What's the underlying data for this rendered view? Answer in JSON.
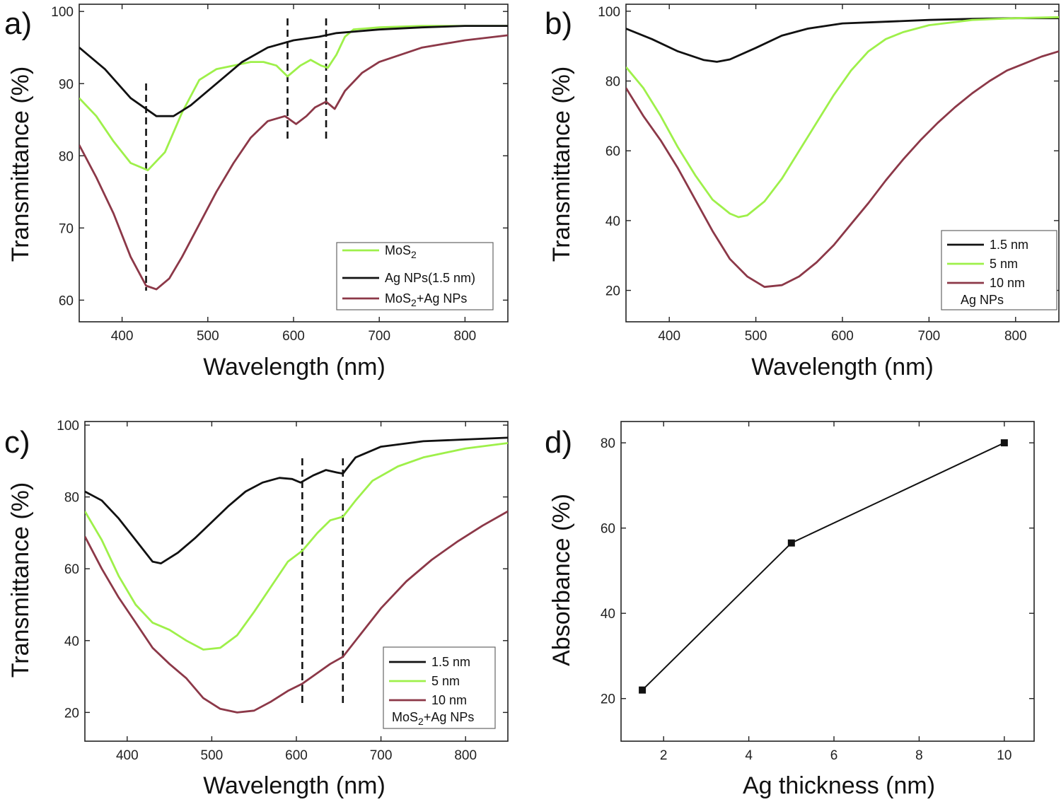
{
  "chart_data": [
    {
      "panel": "a)",
      "type": "line",
      "xlabel": "Wavelength (nm)",
      "ylabel": "Transmittance (%)",
      "xlim": [
        350,
        850
      ],
      "ylim": [
        57,
        101
      ],
      "xticks": [
        400,
        500,
        600,
        700,
        800
      ],
      "yticks": [
        60,
        70,
        80,
        90,
        100
      ],
      "legend_position": "bottom-right",
      "legend_note": "",
      "dashed_markers_x": [
        428,
        593,
        638
      ],
      "series": [
        {
          "name": "MoS2",
          "label_main": "MoS",
          "label_sub": "2",
          "label_tail": "",
          "color": "#9ef04a",
          "x": [
            350,
            370,
            390,
            410,
            430,
            450,
            470,
            490,
            510,
            530,
            550,
            565,
            580,
            593,
            608,
            620,
            632,
            640,
            650,
            660,
            670,
            700,
            750,
            800,
            850
          ],
          "y": [
            88,
            85.5,
            82,
            79,
            78,
            80.5,
            86,
            90.5,
            92,
            92.5,
            93,
            93,
            92.5,
            91,
            92.5,
            93.3,
            92.5,
            92.2,
            94,
            96.5,
            97.5,
            97.8,
            98,
            98,
            98
          ]
        },
        {
          "name": "Ag NPs(1.5 nm)",
          "label_main": "Ag NPs(1.5 nm)",
          "label_sub": "",
          "label_tail": "",
          "color": "#111111",
          "x": [
            350,
            380,
            410,
            440,
            460,
            480,
            510,
            540,
            570,
            600,
            630,
            650,
            700,
            750,
            800,
            850
          ],
          "y": [
            95,
            92,
            88,
            85.5,
            85.5,
            87,
            90,
            93,
            95,
            96,
            96.5,
            97,
            97.5,
            97.8,
            98,
            98
          ]
        },
        {
          "name": "MoS2+Ag NPs",
          "label_main": "MoS",
          "label_sub": "2",
          "label_tail": "+Ag NPs",
          "color": "#8c3848",
          "x": [
            350,
            370,
            390,
            410,
            428,
            440,
            455,
            470,
            490,
            510,
            530,
            550,
            570,
            590,
            603,
            615,
            625,
            638,
            648,
            660,
            680,
            700,
            750,
            800,
            850
          ],
          "y": [
            81.5,
            77,
            72,
            66,
            62,
            61.5,
            63,
            66,
            70.5,
            75,
            79,
            82.5,
            84.8,
            85.5,
            84.4,
            85.5,
            86.7,
            87.5,
            86.5,
            89,
            91.5,
            93,
            95,
            96,
            96.7
          ]
        }
      ]
    },
    {
      "panel": "b)",
      "type": "line",
      "xlabel": "Wavelength (nm)",
      "ylabel": "Transmittance (%)",
      "xlim": [
        350,
        850
      ],
      "ylim": [
        11,
        102
      ],
      "xticks": [
        400,
        500,
        600,
        700,
        800
      ],
      "yticks": [
        20,
        40,
        60,
        80,
        100
      ],
      "legend_position": "bottom-right",
      "legend_note": "Ag NPs",
      "dashed_markers_x": [],
      "series": [
        {
          "name": "1.5 nm",
          "label_main": "1.5 nm",
          "label_sub": "",
          "label_tail": "",
          "color": "#111111",
          "x": [
            350,
            380,
            410,
            440,
            455,
            470,
            500,
            530,
            560,
            600,
            650,
            700,
            750,
            800,
            850
          ],
          "y": [
            95,
            92,
            88.5,
            86,
            85.5,
            86.2,
            89.5,
            93,
            95,
            96.5,
            97,
            97.5,
            97.8,
            98,
            98
          ]
        },
        {
          "name": "5 nm",
          "label_main": "5 nm",
          "label_sub": "",
          "label_tail": "",
          "color": "#9ef04a",
          "x": [
            350,
            370,
            390,
            410,
            430,
            450,
            470,
            480,
            490,
            510,
            530,
            550,
            570,
            590,
            610,
            630,
            650,
            670,
            700,
            750,
            800,
            850
          ],
          "y": [
            84,
            78,
            70,
            61,
            53,
            46,
            42,
            41,
            41.5,
            45.5,
            52,
            60,
            68,
            76,
            83,
            88.5,
            92,
            94,
            96,
            97.5,
            98,
            98.3
          ]
        },
        {
          "name": "10 nm",
          "label_main": "10 nm",
          "label_sub": "",
          "label_tail": "",
          "color": "#8c3848",
          "x": [
            350,
            370,
            390,
            410,
            430,
            450,
            470,
            490,
            510,
            530,
            550,
            570,
            590,
            610,
            630,
            650,
            670,
            690,
            710,
            730,
            750,
            770,
            790,
            810,
            830,
            850
          ],
          "y": [
            78,
            70,
            63,
            55,
            46,
            37,
            29,
            24,
            21,
            21.5,
            24,
            28,
            33,
            39,
            45,
            51.5,
            57.5,
            63,
            68,
            72.5,
            76.5,
            80,
            83,
            85,
            87,
            88.5
          ]
        }
      ]
    },
    {
      "panel": "c)",
      "type": "line",
      "xlabel": "Wavelength (nm)",
      "ylabel": "Transmittance (%)",
      "xlim": [
        350,
        850
      ],
      "ylim": [
        12,
        101
      ],
      "xticks": [
        400,
        500,
        600,
        700,
        800
      ],
      "yticks": [
        20,
        40,
        60,
        80,
        100
      ],
      "legend_position": "bottom-right",
      "legend_note_main": "MoS",
      "legend_note_sub": "2",
      "legend_note_tail": "+Ag NPs",
      "dashed_markers_x": [
        607,
        655
      ],
      "series": [
        {
          "name": "1.5 nm",
          "label_main": "1.5 nm",
          "label_sub": "",
          "label_tail": "",
          "color": "#111111",
          "x": [
            350,
            370,
            390,
            410,
            430,
            440,
            460,
            480,
            500,
            520,
            540,
            560,
            580,
            595,
            605,
            620,
            635,
            648,
            655,
            670,
            700,
            750,
            800,
            850
          ],
          "y": [
            81.5,
            79,
            74,
            68,
            62,
            61.5,
            64.5,
            68.5,
            73,
            77.5,
            81.5,
            84,
            85.3,
            85,
            84,
            86,
            87.5,
            86.8,
            86.5,
            91,
            94,
            95.5,
            96,
            96.5
          ]
        },
        {
          "name": "5 nm",
          "label_main": "5 nm",
          "label_sub": "",
          "label_tail": "",
          "color": "#9ef04a",
          "x": [
            350,
            370,
            390,
            410,
            430,
            450,
            470,
            490,
            510,
            530,
            550,
            570,
            590,
            607,
            625,
            640,
            655,
            670,
            690,
            720,
            750,
            800,
            850
          ],
          "y": [
            76,
            68,
            58,
            50,
            45,
            43,
            40,
            37.5,
            38,
            41.5,
            48,
            55,
            62,
            65,
            70,
            73.5,
            74.5,
            79,
            84.5,
            88.5,
            91,
            93.5,
            95
          ]
        },
        {
          "name": "10 nm",
          "label_main": "10 nm",
          "label_sub": "",
          "label_tail": "",
          "color": "#8c3848",
          "x": [
            350,
            370,
            390,
            410,
            430,
            450,
            470,
            490,
            510,
            530,
            550,
            570,
            590,
            607,
            625,
            640,
            655,
            670,
            700,
            730,
            760,
            790,
            820,
            850
          ],
          "y": [
            69,
            60,
            52,
            45,
            38,
            33.5,
            29.5,
            24,
            21,
            20,
            20.5,
            23,
            26,
            28,
            31,
            33.5,
            35.5,
            40,
            49,
            56.5,
            62.5,
            67.5,
            72,
            76
          ]
        }
      ]
    },
    {
      "panel": "d)",
      "type": "line",
      "xlabel": "Ag thickness (nm)",
      "ylabel": "Absorbance (%)",
      "xlim": [
        1,
        10.7
      ],
      "ylim": [
        10,
        85
      ],
      "xticks": [
        2,
        4,
        6,
        8,
        10
      ],
      "yticks": [
        20,
        40,
        60,
        80
      ],
      "legend_position": "none",
      "series": [
        {
          "name": "Absorbance",
          "color": "#111111",
          "x": [
            1.5,
            5,
            10
          ],
          "y": [
            22,
            56.5,
            80
          ]
        }
      ]
    }
  ]
}
